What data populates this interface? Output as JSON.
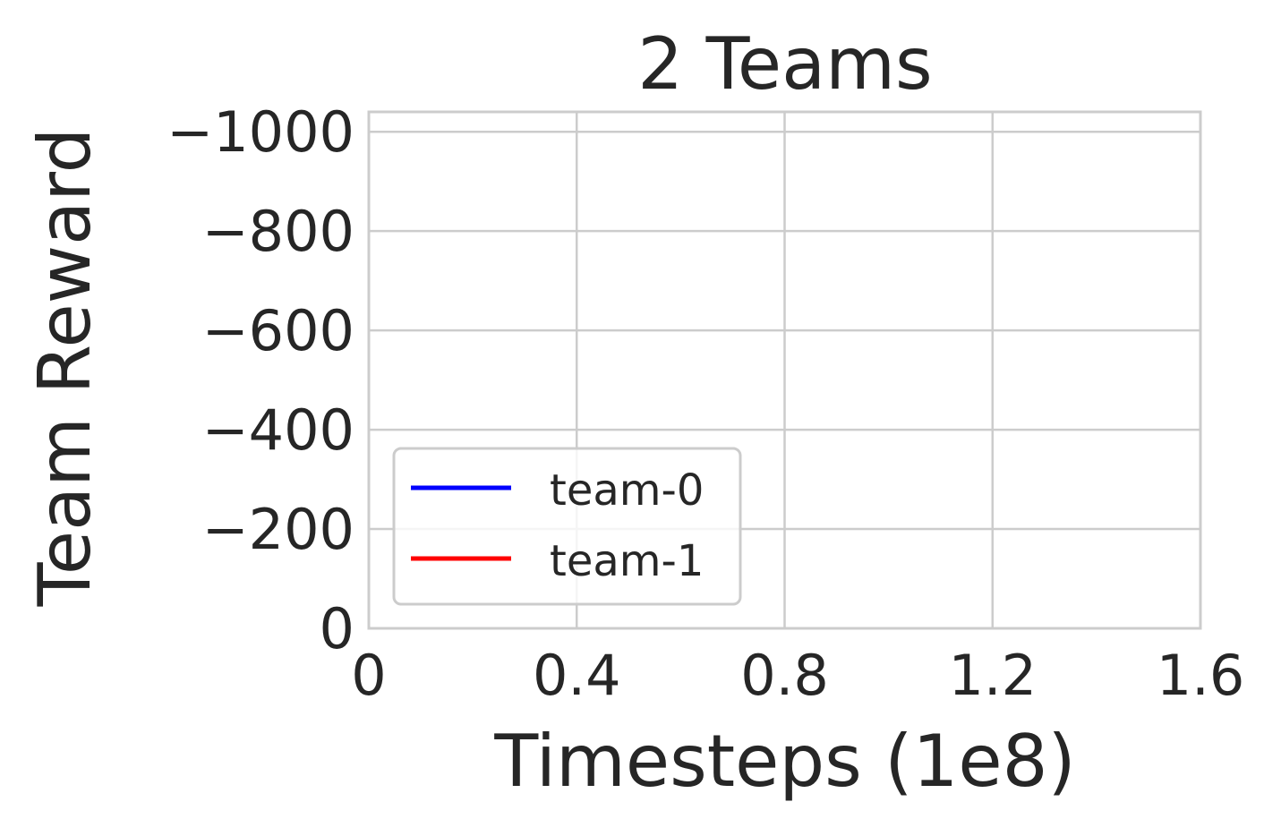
{
  "chart_data": {
    "type": "line",
    "title": "2 Teams",
    "xlabel": "Timesteps (1e8)",
    "ylabel": "Team Reward",
    "xlim": [
      0,
      1.6
    ],
    "ylim": [
      0,
      -1040
    ],
    "y_inverted": true,
    "x_ticks": [
      {
        "value": 0,
        "label": "0"
      },
      {
        "value": 0.4,
        "label": "0.4"
      },
      {
        "value": 0.8,
        "label": "0.8"
      },
      {
        "value": 1.2,
        "label": "1.2"
      },
      {
        "value": 1.6,
        "label": "1.6"
      }
    ],
    "y_ticks": [
      {
        "value": 0,
        "label": "0"
      },
      {
        "value": -200,
        "label": "−200"
      },
      {
        "value": -400,
        "label": "−400"
      },
      {
        "value": -600,
        "label": "−600"
      },
      {
        "value": -800,
        "label": "−800"
      },
      {
        "value": -1000,
        "label": "−1000"
      }
    ],
    "grid": true,
    "legend_position": "lower-left",
    "series": [
      {
        "name": "team-0",
        "color": "#0000ff",
        "x": [],
        "y": []
      },
      {
        "name": "team-1",
        "color": "#ff0000",
        "x": [],
        "y": []
      }
    ]
  }
}
